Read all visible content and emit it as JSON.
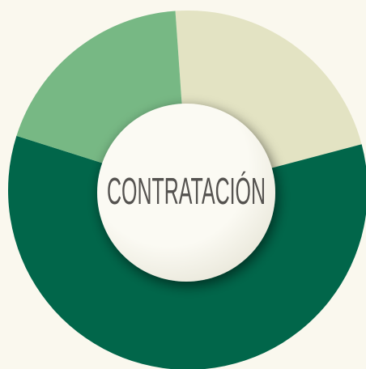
{
  "chart_data": {
    "type": "donut",
    "title": "CONTRATACIÓN",
    "series": [
      {
        "color": "#e3e3c3",
        "values": [
          22
        ]
      },
      {
        "color": "#01664a",
        "values": [
          59
        ]
      },
      {
        "color": "#77b884",
        "values": [
          19
        ]
      }
    ]
  }
}
